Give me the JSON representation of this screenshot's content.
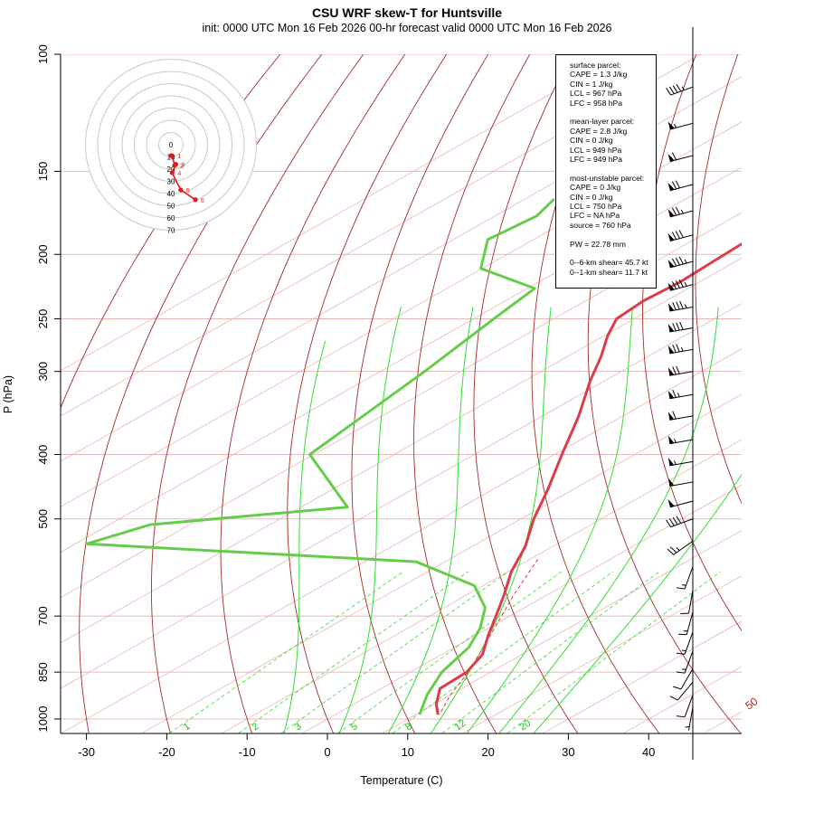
{
  "title": "CSU WRF skew-T for Huntsville",
  "subtitle": "init: 0000 UTC Mon 16 Feb 2026     00-hr forecast valid 0000 UTC Mon 16 Feb 2026",
  "info": {
    "surface_header": "surface parcel:",
    "surface_cape": "CAPE = 1.3 J/kg",
    "surface_cin": "CIN = 1 J/kg",
    "surface_lcl": "LCL = 967 hPa",
    "surface_lfc": "LFC = 958 hPa",
    "ml_header": "mean-layer parcel:",
    "ml_cape": "CAPE = 2.8 J/kg",
    "ml_cin": "CIN = 0 J/kg",
    "ml_lcl": "LCL = 949 hPa",
    "ml_lfc": "LFC = 949 hPa",
    "mu_header": "most-unstable parcel:",
    "mu_cape": "CAPE = 0 J/kg",
    "mu_cin": "CIN = 0 J/kg",
    "mu_lcl": "LCL = 750 hPa",
    "mu_lfc": "LFC = NA hPa",
    "mu_source": "source = 760 hPa",
    "pw": "PW =  22.78 mm",
    "shear06": "0--6-km shear= 45.7 kt",
    "shear01": "0--1-km shear= 11.7 kt"
  },
  "chart_data": {
    "type": "line",
    "diagram": "skew-T log-P",
    "xlabel": "Temperature (C)",
    "ylabel": "P (hPa)",
    "xlim": [
      -33,
      46
    ],
    "ylim_pressure": [
      1050,
      100
    ],
    "x_ticks": [
      -30,
      -20,
      -10,
      0,
      10,
      20,
      30,
      40
    ],
    "p_ticks": [
      100,
      150,
      200,
      250,
      300,
      400,
      500,
      700,
      850,
      1000
    ],
    "isotherm_labels": [
      -10,
      0,
      10,
      20,
      30,
      40,
      50
    ],
    "mixing_ratio_labels": [
      "1",
      "2",
      "3",
      "5",
      "8",
      "12",
      "20"
    ],
    "hodograph_ring_labels": [
      "0",
      "10",
      "20",
      "30",
      "40",
      "50",
      "60",
      "70"
    ],
    "hodograph_point_labels": [
      "1",
      "2",
      "3",
      "4",
      "5",
      "6"
    ],
    "colors": {
      "temperature": "#dc3b4b",
      "dewpoint": "#66cc4c",
      "dry_adiabat": "#a52a2a",
      "moist_adiabat": "#33dd33",
      "isotherm": "#e8b4b4",
      "isobar": "#e8b8b8",
      "hodograph": "#e31a1c",
      "ring": "#c8c8c8"
    },
    "series": [
      {
        "points": [
          {
            "p": 110,
            "t": -55.8
          },
          {
            "p": 125,
            "t": -56.0
          },
          {
            "p": 140,
            "t": -56.6
          },
          {
            "p": 160,
            "t": -55.6
          },
          {
            "p": 175,
            "t": -54.6
          },
          {
            "p": 190,
            "t": -53.2
          },
          {
            "p": 205,
            "t": -52.8
          },
          {
            "p": 220,
            "t": -52.4
          },
          {
            "p": 235,
            "t": -52.8
          },
          {
            "p": 250,
            "t": -52.2
          },
          {
            "p": 265,
            "t": -49.6
          },
          {
            "p": 285,
            "t": -45.8
          },
          {
            "p": 310,
            "t": -41.8
          },
          {
            "p": 350,
            "t": -35.5
          },
          {
            "p": 400,
            "t": -29.1
          },
          {
            "p": 450,
            "t": -23.3
          },
          {
            "p": 500,
            "t": -18.4
          },
          {
            "p": 550,
            "t": -13.4
          },
          {
            "p": 600,
            "t": -9.6
          },
          {
            "p": 650,
            "t": -5.4
          },
          {
            "p": 700,
            "t": -1.7
          },
          {
            "p": 750,
            "t": 1.7
          },
          {
            "p": 800,
            "t": 5.1
          },
          {
            "p": 850,
            "t": 7.0
          },
          {
            "p": 900,
            "t": 7.3
          },
          {
            "p": 950,
            "t": 10.3
          },
          {
            "p": 985,
            "t": 12.8
          }
        ]
      },
      {
        "points": [
          {
            "p": 165,
            "t": -86.4
          },
          {
            "p": 175,
            "t": -84.8
          },
          {
            "p": 190,
            "t": -85.7
          },
          {
            "p": 210,
            "t": -80.2
          },
          {
            "p": 225,
            "t": -69.1
          },
          {
            "p": 245,
            "t": -67.8
          },
          {
            "p": 300,
            "t": -64.5
          },
          {
            "p": 400,
            "t": -60.5
          },
          {
            "p": 480,
            "t": -44.2
          },
          {
            "p": 510,
            "t": -64.9
          },
          {
            "p": 545,
            "t": -68.6
          },
          {
            "p": 580,
            "t": -23.6
          },
          {
            "p": 630,
            "t": -11.1
          },
          {
            "p": 680,
            "t": -4.9
          },
          {
            "p": 730,
            "t": -1.0
          },
          {
            "p": 780,
            "t": 1.8
          },
          {
            "p": 850,
            "t": 3.9
          },
          {
            "p": 920,
            "t": 7.1
          },
          {
            "p": 985,
            "t": 10.5
          }
        ]
      }
    ],
    "parcel_trace": [
      {
        "p": 575,
        "t": -9.0
      },
      {
        "p": 650,
        "t": -4.2
      },
      {
        "p": 720,
        "t": 0.2
      },
      {
        "p": 780,
        "t": 3.6
      },
      {
        "p": 850,
        "t": 7.2
      },
      {
        "p": 920,
        "t": 10.0
      },
      {
        "p": 985,
        "t": 13.0
      }
    ],
    "hodograph": [
      {
        "label": "",
        "u": 0,
        "v": 9
      },
      {
        "label": "1",
        "u": 1,
        "v": 9
      },
      {
        "label": "2",
        "u": 3,
        "v": 17
      },
      {
        "label": "3",
        "u": 4,
        "v": 16
      },
      {
        "label": "4",
        "u": 1,
        "v": 23
      },
      {
        "label": "5",
        "u": 8,
        "v": 37
      },
      {
        "label": "6",
        "u": 20,
        "v": 45
      }
    ],
    "wind_barbs": [
      {
        "p": 112,
        "spd": 45,
        "dir": 250
      },
      {
        "p": 127,
        "spd": 55,
        "dir": 255
      },
      {
        "p": 142,
        "spd": 60,
        "dir": 255
      },
      {
        "p": 157,
        "spd": 70,
        "dir": 255
      },
      {
        "p": 172,
        "spd": 75,
        "dir": 255
      },
      {
        "p": 187,
        "spd": 80,
        "dir": 255
      },
      {
        "p": 205,
        "spd": 85,
        "dir": 255
      },
      {
        "p": 222,
        "spd": 85,
        "dir": 255
      },
      {
        "p": 240,
        "spd": 85,
        "dir": 260
      },
      {
        "p": 258,
        "spd": 80,
        "dir": 260
      },
      {
        "p": 278,
        "spd": 75,
        "dir": 260
      },
      {
        "p": 300,
        "spd": 70,
        "dir": 260
      },
      {
        "p": 325,
        "spd": 65,
        "dir": 260
      },
      {
        "p": 350,
        "spd": 60,
        "dir": 260
      },
      {
        "p": 380,
        "spd": 55,
        "dir": 260
      },
      {
        "p": 410,
        "spd": 55,
        "dir": 260
      },
      {
        "p": 440,
        "spd": 50,
        "dir": 260
      },
      {
        "p": 470,
        "spd": 50,
        "dir": 255
      },
      {
        "p": 500,
        "spd": 40,
        "dir": 250
      },
      {
        "p": 540,
        "spd": 25,
        "dir": 235
      },
      {
        "p": 590,
        "spd": 15,
        "dir": 200
      },
      {
        "p": 640,
        "spd": 10,
        "dir": 190
      },
      {
        "p": 690,
        "spd": 15,
        "dir": 195
      },
      {
        "p": 740,
        "spd": 15,
        "dir": 200
      },
      {
        "p": 790,
        "spd": 15,
        "dir": 200
      },
      {
        "p": 840,
        "spd": 10,
        "dir": 210
      },
      {
        "p": 880,
        "spd": 10,
        "dir": 220
      },
      {
        "p": 920,
        "spd": 10,
        "dir": 200
      },
      {
        "p": 960,
        "spd": 5,
        "dir": 190
      }
    ]
  }
}
